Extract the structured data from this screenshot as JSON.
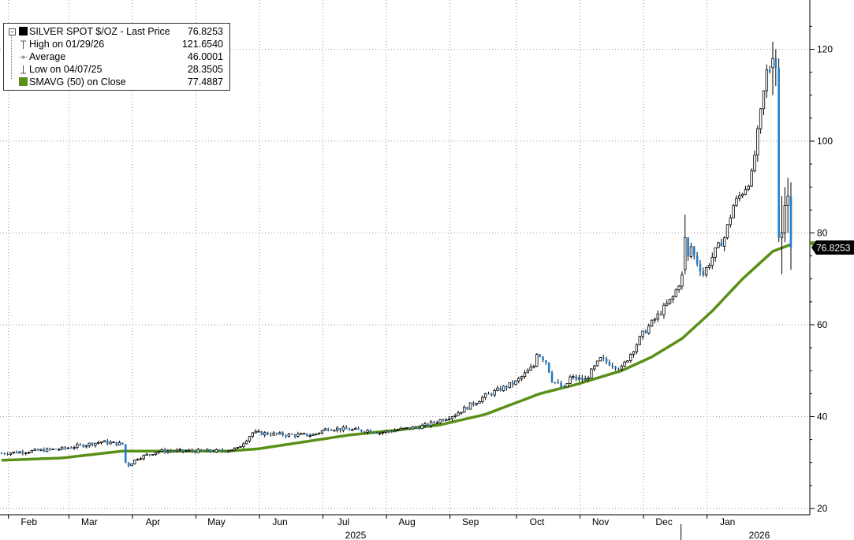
{
  "chart_data": {
    "type": "candlestick",
    "security": "SILVER SPOT $/OZ",
    "period_label": "2025",
    "period_label_2": "2026",
    "yticks": [
      20,
      40,
      60,
      80,
      100,
      120
    ],
    "ylim": [
      19,
      130
    ],
    "grid": true,
    "colors": {
      "candle_up": "#000000",
      "candle_down": "#1f7fd0",
      "sma": "#5a8f18",
      "grid": "#999999"
    },
    "legend": [
      {
        "label": "SILVER SPOT $/OZ  - Last Price",
        "value": "76.8253",
        "icon": "black-square-icon"
      },
      {
        "label": "High on 01/29/26",
        "value": "121.6540",
        "icon": "high-marker-icon"
      },
      {
        "label": "Average",
        "value": "46.0001",
        "icon": "average-marker-icon"
      },
      {
        "label": "Low on 04/07/25",
        "value": "28.3505",
        "icon": "low-marker-icon"
      },
      {
        "label": "SMAVG (50)  on Close",
        "value": "77.4887",
        "icon": "green-square-icon"
      }
    ],
    "last_price_label": "76.8253",
    "sma_value": 77.4887,
    "months": [
      {
        "label": "Feb",
        "idx": 8
      },
      {
        "label": "Mar",
        "idx": 28
      },
      {
        "label": "Apr",
        "idx": 49
      },
      {
        "label": "May",
        "idx": 70
      },
      {
        "label": "Jun",
        "idx": 91
      },
      {
        "label": "Jul",
        "idx": 112
      },
      {
        "label": "Aug",
        "idx": 133
      },
      {
        "label": "Sep",
        "idx": 154
      },
      {
        "label": "Oct",
        "idx": 176
      },
      {
        "label": "Nov",
        "idx": 197
      },
      {
        "label": "Dec",
        "idx": 218
      },
      {
        "label": "Jan",
        "idx": 239
      }
    ],
    "close_anchors": [
      [
        0,
        32
      ],
      [
        20,
        33
      ],
      [
        33,
        34.5
      ],
      [
        40,
        34
      ],
      [
        41,
        30
      ],
      [
        42,
        29.5
      ],
      [
        45,
        31
      ],
      [
        52,
        32.5
      ],
      [
        62,
        32.5
      ],
      [
        72,
        32.5
      ],
      [
        78,
        33
      ],
      [
        83,
        36.5
      ],
      [
        95,
        36
      ],
      [
        103,
        36
      ],
      [
        108,
        37.5
      ],
      [
        118,
        37
      ],
      [
        122,
        37
      ],
      [
        125,
        36.5
      ],
      [
        140,
        38
      ],
      [
        150,
        40.5
      ],
      [
        160,
        44.5
      ],
      [
        170,
        47.5
      ],
      [
        176,
        51
      ],
      [
        177,
        54
      ],
      [
        180,
        52
      ],
      [
        182,
        48
      ],
      [
        186,
        46
      ],
      [
        188,
        48.5
      ],
      [
        193,
        48
      ],
      [
        198,
        52.5
      ],
      [
        205,
        50.5
      ],
      [
        212,
        58
      ],
      [
        222,
        66
      ],
      [
        226,
        72
      ],
      [
        228,
        77
      ],
      [
        229,
        75
      ],
      [
        232,
        71
      ],
      [
        236,
        76
      ],
      [
        239,
        79
      ],
      [
        242,
        86
      ],
      [
        246,
        90
      ],
      [
        248,
        92.5
      ],
      [
        253,
        115
      ],
      [
        257,
        117
      ],
      [
        258,
        104
      ],
      [
        259,
        85
      ],
      [
        261,
        78
      ],
      [
        262,
        83
      ],
      [
        263,
        86
      ],
      [
        264,
        76.8
      ]
    ],
    "special_bars": [
      {
        "i": 226,
        "o": 72,
        "h": 84,
        "c": 79,
        "l": 71
      },
      {
        "i": 255,
        "o": 116,
        "h": 121.654,
        "c": 118,
        "l": 110
      },
      {
        "i": 256,
        "o": 118,
        "h": 120,
        "c": 116,
        "l": 112
      },
      {
        "i": 257,
        "o": 116,
        "h": 118,
        "c": 79,
        "l": 78
      },
      {
        "i": 258,
        "o": 79,
        "h": 88,
        "c": 80,
        "l": 71
      },
      {
        "i": 259,
        "o": 80,
        "h": 90,
        "c": 86,
        "l": 78
      },
      {
        "i": 260,
        "o": 86,
        "h": 92,
        "c": 88,
        "l": 80
      },
      {
        "i": 261,
        "o": 88,
        "h": 91,
        "c": 76.8253,
        "l": 72
      }
    ],
    "sma_anchors": [
      [
        0,
        30.5
      ],
      [
        20,
        31
      ],
      [
        40,
        32.5
      ],
      [
        60,
        32.5
      ],
      [
        75,
        32.5
      ],
      [
        85,
        33
      ],
      [
        100,
        34.5
      ],
      [
        115,
        36
      ],
      [
        130,
        37
      ],
      [
        145,
        38.2
      ],
      [
        160,
        40.5
      ],
      [
        170,
        43
      ],
      [
        178,
        45
      ],
      [
        190,
        47
      ],
      [
        205,
        50
      ],
      [
        215,
        53
      ],
      [
        225,
        57
      ],
      [
        235,
        63
      ],
      [
        245,
        70
      ],
      [
        255,
        76
      ],
      [
        261,
        77.4887
      ]
    ]
  }
}
